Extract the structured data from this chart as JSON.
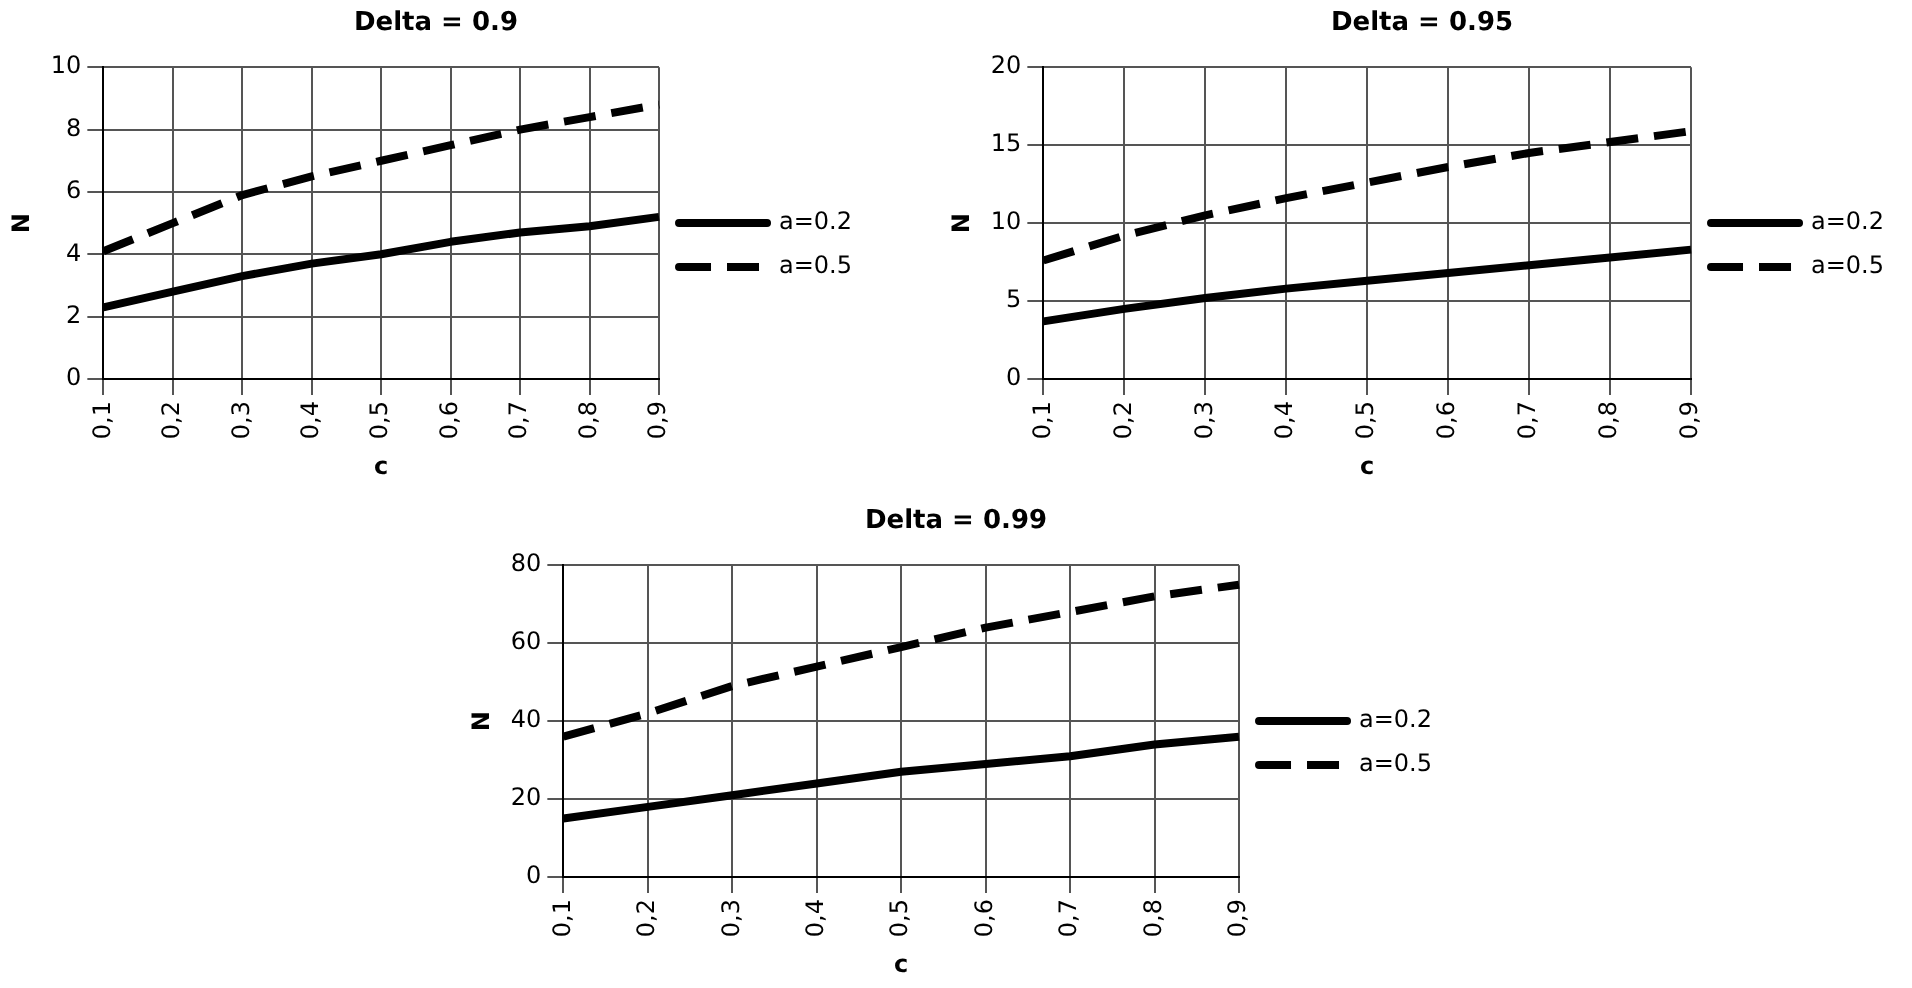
{
  "chart_data": [
    {
      "type": "line",
      "title": "Delta = 0.9",
      "xlabel": "c",
      "ylabel": "N",
      "categories": [
        "0,1",
        "0,2",
        "0,3",
        "0,4",
        "0,5",
        "0,6",
        "0,7",
        "0,8",
        "0,9"
      ],
      "ylim": [
        0,
        10
      ],
      "yticks": [
        0,
        2,
        4,
        6,
        8,
        10
      ],
      "grid": true,
      "legend": "right",
      "marker": "none",
      "series": [
        {
          "name": "a=0.2",
          "color": "#000000",
          "line_style": "solid",
          "values": [
            2.3,
            2.8,
            3.3,
            3.7,
            4.0,
            4.4,
            4.7,
            4.9,
            5.2
          ]
        },
        {
          "name": "a=0.5",
          "color": "#000000",
          "line_style": "dashed",
          "values": [
            4.1,
            5.0,
            5.9,
            6.5,
            7.0,
            7.5,
            8.0,
            8.4,
            8.8
          ]
        }
      ]
    },
    {
      "type": "line",
      "title": "Delta = 0.95",
      "xlabel": "c",
      "ylabel": "N",
      "categories": [
        "0,1",
        "0,2",
        "0,3",
        "0,4",
        "0,5",
        "0,6",
        "0,7",
        "0,8",
        "0,9"
      ],
      "ylim": [
        0,
        20
      ],
      "yticks": [
        0,
        5,
        10,
        15,
        20
      ],
      "grid": true,
      "legend": "right",
      "marker": "none",
      "series": [
        {
          "name": "a=0.2",
          "color": "#000000",
          "line_style": "solid",
          "values": [
            3.7,
            4.5,
            5.2,
            5.8,
            6.3,
            6.8,
            7.3,
            7.8,
            8.3
          ]
        },
        {
          "name": "a=0.5",
          "color": "#000000",
          "line_style": "dashed",
          "values": [
            7.6,
            9.2,
            10.5,
            11.6,
            12.6,
            13.6,
            14.5,
            15.2,
            15.9
          ]
        }
      ]
    },
    {
      "type": "line",
      "title": "Delta = 0.99",
      "xlabel": "c",
      "ylabel": "N",
      "categories": [
        "0,1",
        "0,2",
        "0,3",
        "0,4",
        "0,5",
        "0,6",
        "0,7",
        "0,8",
        "0,9"
      ],
      "ylim": [
        0,
        80
      ],
      "yticks": [
        0,
        20,
        40,
        60,
        80
      ],
      "grid": true,
      "legend": "right",
      "marker": "none",
      "series": [
        {
          "name": "a=0.2",
          "color": "#000000",
          "line_style": "solid",
          "values": [
            15,
            18,
            21,
            24,
            27,
            29,
            31,
            34,
            36
          ]
        },
        {
          "name": "a=0.5",
          "color": "#000000",
          "line_style": "dashed",
          "values": [
            36,
            42,
            49,
            54,
            59,
            64,
            68,
            72,
            75
          ]
        }
      ]
    }
  ]
}
